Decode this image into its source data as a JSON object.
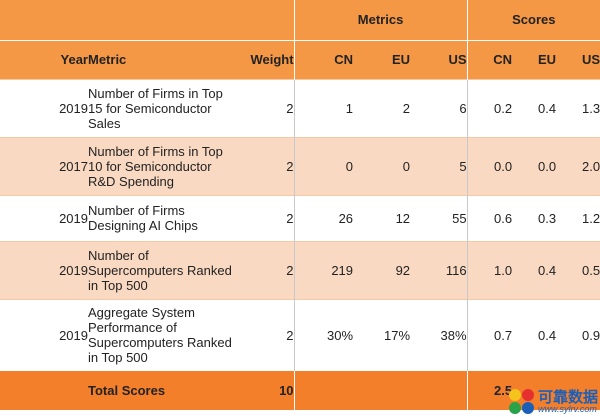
{
  "header": {
    "group_metrics": "Metrics",
    "group_scores": "Scores",
    "col_year": "Year",
    "col_metric": "Metric",
    "col_weight": "Weight",
    "metrics_cn": "CN",
    "metrics_eu": "EU",
    "metrics_us": "US",
    "scores_cn": "CN",
    "scores_eu": "EU",
    "scores_us": "US"
  },
  "rows": [
    {
      "year": "2019",
      "metric": "Number of Firms in Top 15 for Semiconductor Sales",
      "weight": "2",
      "m_cn": "1",
      "m_eu": "2",
      "m_us": "6",
      "s_cn": "0.2",
      "s_eu": "0.4",
      "s_us": "1.3"
    },
    {
      "year": "2017",
      "metric": "Number of Firms in Top 10 for Semiconductor R&D Spending",
      "weight": "2",
      "m_cn": "0",
      "m_eu": "0",
      "m_us": "5",
      "s_cn": "0.0",
      "s_eu": "0.0",
      "s_us": "2.0"
    },
    {
      "year": "2019",
      "metric": "Number of Firms Designing AI Chips",
      "weight": "2",
      "m_cn": "26",
      "m_eu": "12",
      "m_us": "55",
      "s_cn": "0.6",
      "s_eu": "0.3",
      "s_us": "1.2"
    },
    {
      "year": "2019",
      "metric": "Number of Supercomputers Ranked in Top 500",
      "weight": "2",
      "m_cn": "219",
      "m_eu": "92",
      "m_us": "116",
      "s_cn": "1.0",
      "s_eu": "0.4",
      "s_us": "0.5"
    },
    {
      "year": "2019",
      "metric": "Aggregate System Performance of Supercomputers Ranked in Top 500",
      "weight": "2",
      "m_cn": "30%",
      "m_eu": "17%",
      "m_us": "38%",
      "s_cn": "0.7",
      "s_eu": "0.4",
      "s_us": "0.9"
    }
  ],
  "total": {
    "label": "Total Scores",
    "weight": "10",
    "score_cn": "2.5"
  },
  "watermark": {
    "name": "可靠数据",
    "url": "www.sylrv.com"
  }
}
